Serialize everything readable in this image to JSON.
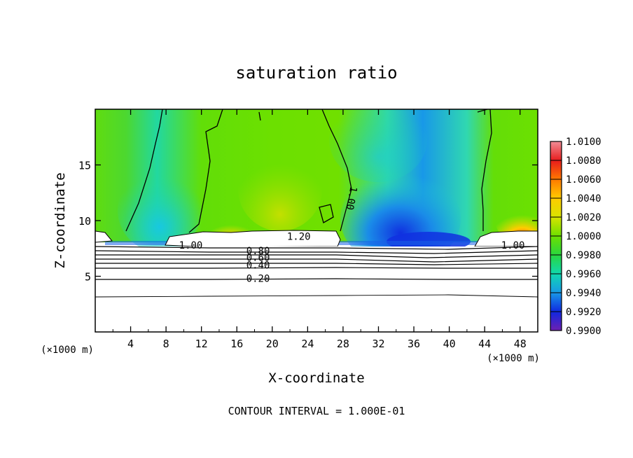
{
  "chart_data": {
    "type": "heatmap",
    "title": "saturation ratio",
    "xlabel": "X-coordinate",
    "ylabel": "Z-coordinate",
    "x_unit": "(×1000 m)",
    "y_unit": "(×1000 m)",
    "xlim": [
      0,
      50
    ],
    "ylim": [
      0,
      20
    ],
    "x_ticks": [
      "4",
      "8",
      "12",
      "16",
      "20",
      "24",
      "28",
      "32",
      "36",
      "40",
      "44",
      "48"
    ],
    "y_ticks": [
      "5",
      "10",
      "15"
    ],
    "colorbar": {
      "min": 0.99,
      "max": 1.01,
      "ticks": [
        "1.0100",
        "1.0080",
        "1.0060",
        "1.0040",
        "1.0020",
        "1.0000",
        "0.9980",
        "0.9960",
        "0.9940",
        "0.9920",
        "0.9900"
      ],
      "colors": [
        "#f08c96",
        "#e81c1c",
        "#ff7a00",
        "#ffcc00",
        "#d8e400",
        "#6ce000",
        "#28d640",
        "#10d8b0",
        "#1898e8",
        "#1028e0",
        "#7020b0"
      ]
    },
    "contour_labels": [
      {
        "text": "1.20",
        "x": 23,
        "z": 8.6
      },
      {
        "text": "1.00",
        "x": 10.8,
        "z": 7.8
      },
      {
        "text": "0.80",
        "x": 18.4,
        "z": 7.3
      },
      {
        "text": "0.60",
        "x": 18.4,
        "z": 6.7
      },
      {
        "text": "0.40",
        "x": 18.4,
        "z": 6.0
      },
      {
        "text": "0.20",
        "x": 18.4,
        "z": 4.8
      },
      {
        "text": "1.00",
        "x": 29.0,
        "z": 12.0
      },
      {
        "text": "1.00",
        "x": 47.2,
        "z": 7.8
      }
    ],
    "footer": "CONTOUR INTERVAL = 1.000E-01"
  }
}
